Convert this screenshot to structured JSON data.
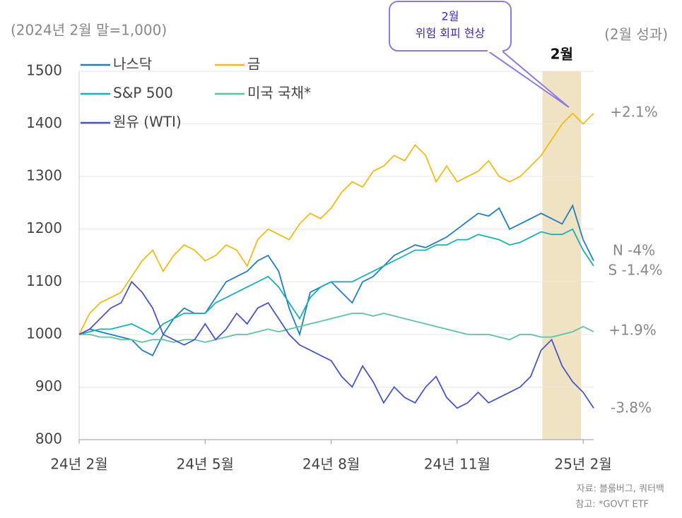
{
  "chart_data": {
    "type": "line",
    "y_unit_label": "(2024년 2월 말=1,000)",
    "right_header": "(2월 성과)",
    "x": [
      0,
      0.25,
      0.5,
      0.75,
      1,
      1.25,
      1.5,
      1.75,
      2,
      2.25,
      2.5,
      2.75,
      3,
      3.25,
      3.5,
      3.75,
      4,
      4.25,
      4.5,
      4.75,
      5,
      5.25,
      5.5,
      5.75,
      6,
      6.25,
      6.5,
      6.75,
      7,
      7.25,
      7.5,
      7.75,
      8,
      8.25,
      8.5,
      8.75,
      9,
      9.25,
      9.5,
      9.75,
      10,
      10.25,
      10.5,
      10.75,
      11,
      11.25,
      11.5,
      11.75,
      12,
      12.25
    ],
    "xlim": [
      0,
      12.25
    ],
    "xticks": [
      {
        "value": 0,
        "label": "24년 2월"
      },
      {
        "value": 3,
        "label": "24년 5월"
      },
      {
        "value": 6,
        "label": "24년 8월"
      },
      {
        "value": 9,
        "label": "24년 11월"
      },
      {
        "value": 12,
        "label": "25년 2월"
      }
    ],
    "ylim": [
      800,
      1500
    ],
    "yticks": [
      800,
      900,
      1000,
      1100,
      1200,
      1300,
      1400,
      1500
    ],
    "grid": true,
    "series": [
      {
        "name": "나스닥",
        "color": "#1f7fbf",
        "values": [
          1000,
          1010,
          1005,
          1000,
          995,
          990,
          970,
          960,
          1000,
          1030,
          1050,
          1040,
          1040,
          1070,
          1100,
          1110,
          1120,
          1140,
          1150,
          1120,
          1050,
          1000,
          1080,
          1090,
          1100,
          1080,
          1060,
          1100,
          1110,
          1130,
          1150,
          1160,
          1170,
          1165,
          1175,
          1185,
          1200,
          1215,
          1230,
          1225,
          1240,
          1200,
          1210,
          1220,
          1230,
          1220,
          1210,
          1245,
          1180,
          1140
        ]
      },
      {
        "name": "금",
        "color": "#f2bb16",
        "values": [
          1000,
          1040,
          1060,
          1070,
          1080,
          1110,
          1140,
          1160,
          1120,
          1150,
          1170,
          1160,
          1140,
          1150,
          1170,
          1160,
          1130,
          1180,
          1200,
          1190,
          1180,
          1210,
          1230,
          1220,
          1240,
          1270,
          1290,
          1280,
          1310,
          1320,
          1340,
          1330,
          1360,
          1340,
          1290,
          1320,
          1290,
          1300,
          1310,
          1330,
          1300,
          1290,
          1300,
          1320,
          1340,
          1370,
          1400,
          1420,
          1400,
          1420
        ]
      },
      {
        "name": "S&P 500",
        "color": "#1ab0b8",
        "values": [
          1000,
          1005,
          1010,
          1010,
          1015,
          1020,
          1010,
          1000,
          1020,
          1030,
          1040,
          1040,
          1040,
          1060,
          1070,
          1080,
          1090,
          1100,
          1110,
          1090,
          1060,
          1030,
          1070,
          1090,
          1100,
          1100,
          1100,
          1110,
          1120,
          1130,
          1140,
          1150,
          1160,
          1160,
          1170,
          1170,
          1180,
          1180,
          1190,
          1185,
          1180,
          1170,
          1175,
          1185,
          1195,
          1190,
          1190,
          1200,
          1160,
          1130
        ]
      },
      {
        "name": "미국 국채*",
        "color": "#5cc4a0",
        "values": [
          1000,
          1000,
          995,
          995,
          990,
          990,
          985,
          990,
          990,
          985,
          990,
          990,
          985,
          990,
          995,
          1000,
          1000,
          1005,
          1010,
          1005,
          1010,
          1015,
          1020,
          1025,
          1030,
          1035,
          1040,
          1040,
          1035,
          1040,
          1035,
          1030,
          1025,
          1020,
          1015,
          1010,
          1005,
          1000,
          1000,
          1000,
          995,
          990,
          1000,
          1000,
          995,
          995,
          1000,
          1005,
          1015,
          1005
        ]
      },
      {
        "name": "원유 (WTI)",
        "color": "#4a55c8",
        "values": [
          1000,
          1010,
          1030,
          1050,
          1060,
          1100,
          1080,
          1050,
          1000,
          990,
          980,
          990,
          1020,
          990,
          1010,
          1040,
          1020,
          1050,
          1060,
          1030,
          1000,
          980,
          970,
          960,
          950,
          920,
          900,
          940,
          910,
          870,
          900,
          880,
          870,
          900,
          920,
          880,
          860,
          870,
          890,
          870,
          880,
          890,
          900,
          920,
          970,
          990,
          940,
          910,
          890,
          860
        ]
      }
    ],
    "highlight": {
      "label": "2월",
      "xrange": [
        11.03,
        11.95
      ],
      "color": "#efe3c4"
    },
    "annotation": [
      "2월",
      "위험 회피 현상"
    ],
    "end_labels": [
      "+2.1%",
      "N -4%",
      "S -1.4%",
      "+1.9%",
      "-3.8%"
    ],
    "source": [
      "자료: 블룸버그, 쿼터백",
      "참고: *GOVT ETF"
    ]
  }
}
